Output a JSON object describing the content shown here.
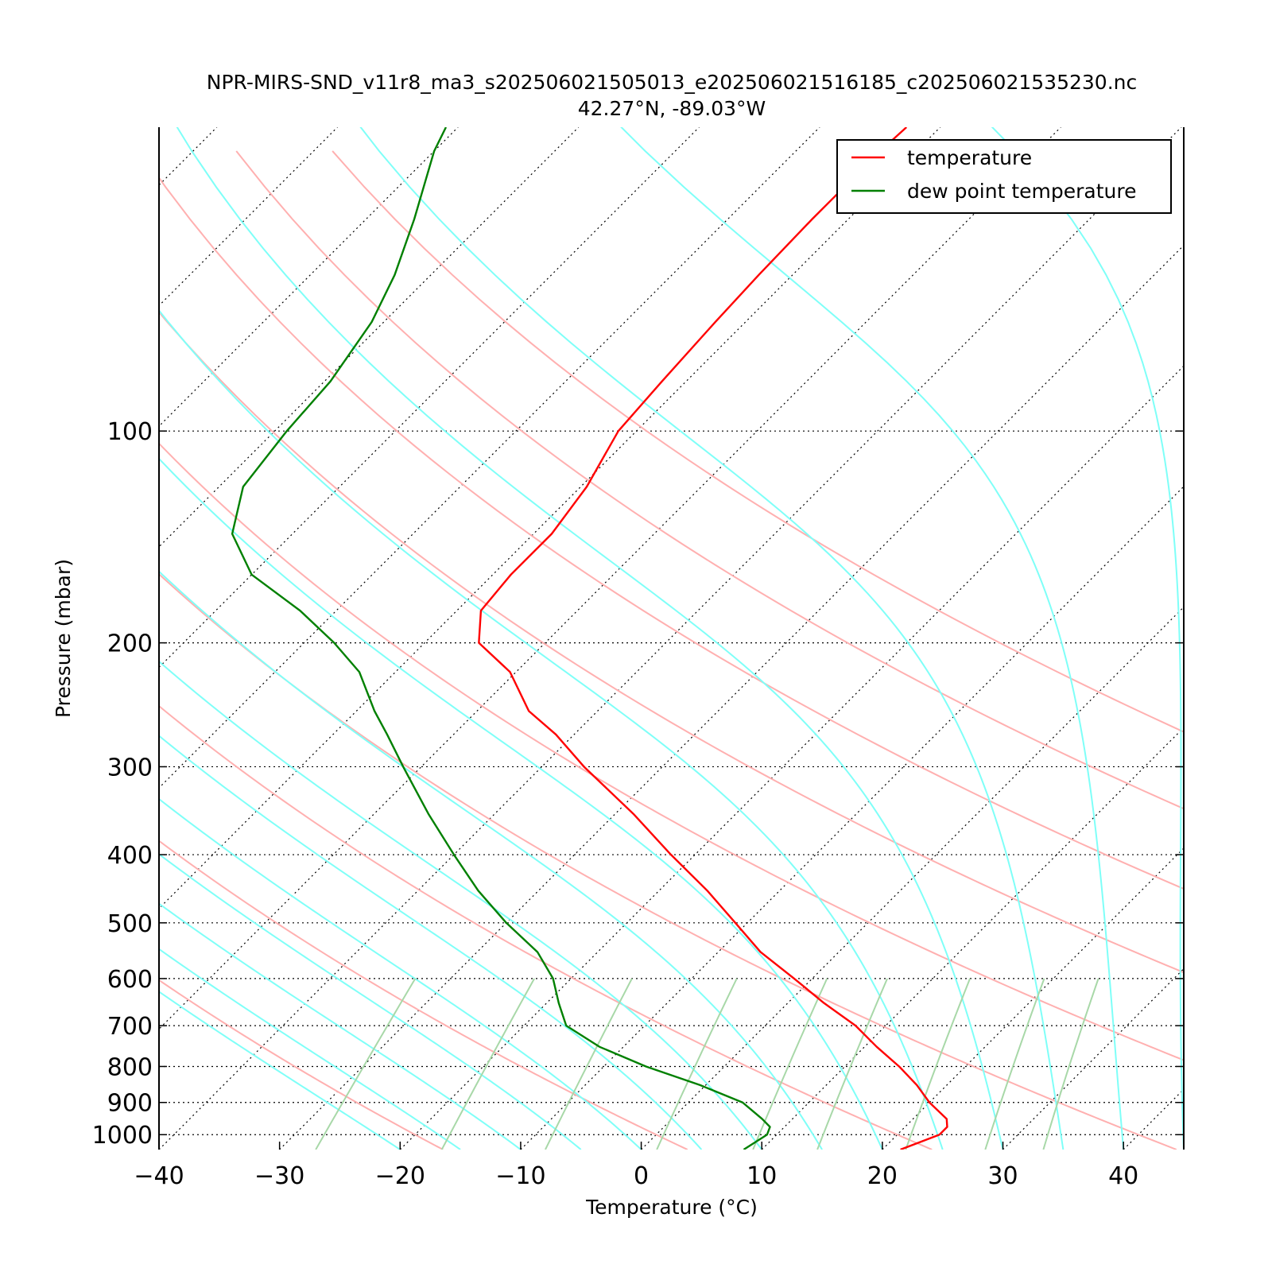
{
  "chart_data": {
    "type": "line",
    "title": "NPR-MIRS-SND_v11r8_ma3_s202506021505013_e202506021516185_c202506021535230.nc",
    "subtitle": "42.27°N, -89.03°W",
    "xlabel": "Temperature (°C)",
    "ylabel": "Pressure (mbar)",
    "xlim": [
      -40,
      45
    ],
    "ylim": [
      1050,
      37
    ],
    "yscale": "log",
    "x_ticks": [
      "−40",
      "−30",
      "−20",
      "−10",
      "0",
      "10",
      "20",
      "30",
      "40"
    ],
    "x_tick_values": [
      -40,
      -30,
      -20,
      -10,
      0,
      10,
      20,
      30,
      40
    ],
    "y_ticks": [
      "100",
      "200",
      "300",
      "400",
      "500",
      "600",
      "700",
      "800",
      "900",
      "1000"
    ],
    "y_tick_values": [
      100,
      200,
      300,
      400,
      500,
      600,
      700,
      800,
      900,
      1000
    ],
    "skew": "skew-T log-p, isotherms skewed 45°",
    "grid": "dotted isotherms and isobars",
    "legend": {
      "placement": "top-right"
    },
    "background_lines": {
      "dry_adiabats": {
        "color": "#ffb0b0",
        "theta_c": [
          -20,
          0,
          20,
          40,
          60,
          80,
          100,
          120,
          140
        ]
      },
      "moist_adiabats": {
        "color": "#7ffff8",
        "start_t_c": [
          -20,
          -15,
          -10,
          -5,
          0,
          5,
          10,
          15,
          20,
          25,
          30,
          35,
          40,
          45
        ]
      },
      "mixing_ratio_lines": {
        "color": "#a8d8a8",
        "w_gkg": [
          0.4,
          1,
          2,
          4,
          7,
          10,
          16,
          24,
          32
        ]
      }
    },
    "series": [
      {
        "name": "temperature",
        "color": "#ff0000",
        "pressure": [
          1050,
          1000,
          975,
          950,
          900,
          850,
          800,
          750,
          700,
          650,
          600,
          550,
          500,
          450,
          400,
          350,
          300,
          270,
          250,
          220,
          200,
          180,
          160,
          140,
          120,
          100,
          85,
          70,
          60,
          50,
          40,
          37
        ],
        "temperature": [
          21.5,
          23.5,
          23.5,
          22.8,
          20,
          17.5,
          14.5,
          11,
          7.5,
          3,
          -1.5,
          -6.5,
          -11,
          -16,
          -22,
          -28.5,
          -36.5,
          -41.5,
          -45.7,
          -50.5,
          -55.5,
          -58,
          -58.5,
          -58.5,
          -59.5,
          -61.5,
          -62,
          -62.5,
          -62.8,
          -63,
          -63,
          -62.8
        ]
      },
      {
        "name": "dew point temperature",
        "color": "#008000",
        "pressure": [
          1050,
          1000,
          975,
          950,
          900,
          850,
          800,
          750,
          700,
          650,
          600,
          550,
          500,
          450,
          400,
          350,
          300,
          270,
          250,
          220,
          200,
          180,
          160,
          140,
          120,
          100,
          85,
          70,
          60,
          50,
          40,
          37
        ],
        "temperature": [
          8.5,
          9.2,
          8.8,
          7.5,
          4.5,
          -0.5,
          -6.5,
          -12,
          -16.5,
          -19,
          -21.5,
          -25,
          -30,
          -35,
          -40,
          -45.5,
          -51.5,
          -55.5,
          -58.5,
          -63,
          -67.5,
          -73,
          -80,
          -85,
          -88,
          -89,
          -89.5,
          -91,
          -93,
          -96,
          -100,
          -101
        ]
      }
    ]
  }
}
